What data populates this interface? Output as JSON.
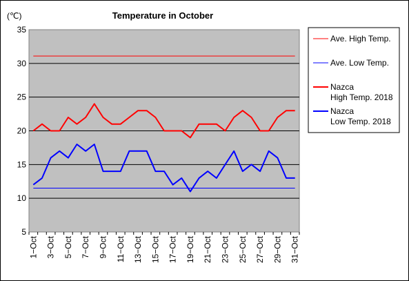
{
  "chart_data": {
    "type": "line",
    "title": "Temperature in October",
    "ylabel": "(℃)",
    "ylim": [
      5,
      35
    ],
    "yticks": [
      5,
      10,
      15,
      20,
      25,
      30,
      35
    ],
    "grid": true,
    "legend_position": "right",
    "x": [
      1,
      2,
      3,
      4,
      5,
      6,
      7,
      8,
      9,
      10,
      11,
      12,
      13,
      14,
      15,
      16,
      17,
      18,
      19,
      20,
      21,
      22,
      23,
      24,
      25,
      26,
      27,
      28,
      29,
      30,
      31
    ],
    "x_tick_labels": [
      "1−Oct",
      "3−Oct",
      "5−Oct",
      "7−Oct",
      "9−Oct",
      "11−Oct",
      "13−Oct",
      "15−Oct",
      "17−Oct",
      "19−Oct",
      "21−Oct",
      "23−Oct",
      "25−Oct",
      "27−Oct",
      "29−Oct",
      "31−Oct"
    ],
    "series": [
      {
        "name": "Ave. High Temp.",
        "color": "#ff0000",
        "width": 1,
        "constant": 31.1
      },
      {
        "name": "Ave. Low Temp.",
        "color": "#0000ff",
        "width": 1,
        "constant": 11.5
      },
      {
        "name": "Nazca\nHigh Temp. 2018",
        "color": "#ff0000",
        "width": 2,
        "values": [
          20,
          21,
          20,
          20,
          22,
          21,
          22,
          24,
          22,
          21,
          21,
          22,
          23,
          23,
          22,
          20,
          20,
          20,
          19,
          21,
          21,
          21,
          20,
          22,
          23,
          22,
          20,
          20,
          22,
          23,
          23
        ]
      },
      {
        "name": "Nazca\nLow Temp. 2018",
        "color": "#0000ff",
        "width": 2,
        "values": [
          12,
          13,
          16,
          17,
          16,
          18,
          17,
          18,
          14,
          14,
          14,
          17,
          17,
          17,
          14,
          14,
          12,
          13,
          11,
          13,
          14,
          13,
          15,
          17,
          14,
          15,
          14,
          17,
          16,
          13,
          13
        ]
      }
    ]
  }
}
